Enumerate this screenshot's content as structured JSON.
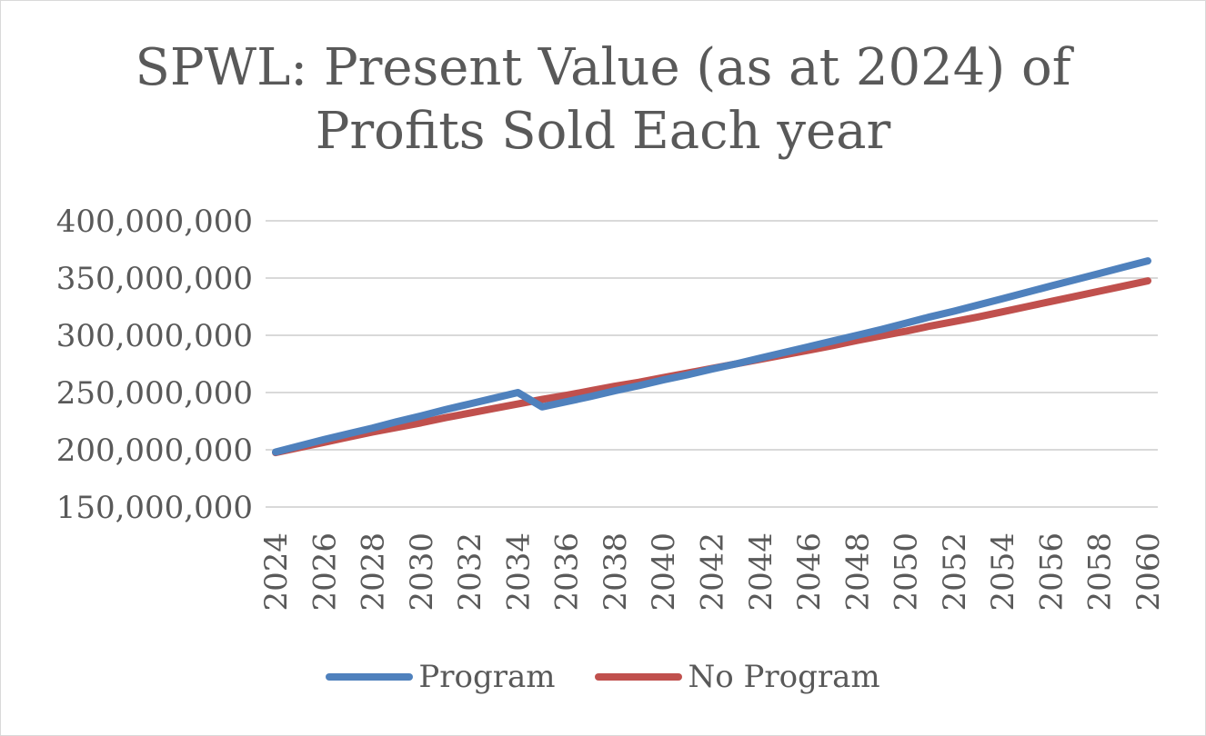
{
  "chart_data": {
    "type": "line",
    "title": "SPWL: Present Value (as at 2024) of Profits Sold Each year",
    "title_lines": [
      "SPWL: Present Value (as at 2024) of",
      "Profits Sold Each year"
    ],
    "xlabel": "",
    "ylabel": "",
    "ylim": [
      150000000,
      400000000
    ],
    "yticks": [
      150000000,
      200000000,
      250000000,
      300000000,
      350000000,
      400000000
    ],
    "ytick_labels": [
      "150,000,000",
      "200,000,000",
      "250,000,000",
      "300,000,000",
      "350,000,000",
      "400,000,000"
    ],
    "x": [
      2024,
      2025,
      2026,
      2027,
      2028,
      2029,
      2030,
      2031,
      2032,
      2033,
      2034,
      2035,
      2036,
      2037,
      2038,
      2039,
      2040,
      2041,
      2042,
      2043,
      2044,
      2045,
      2046,
      2047,
      2048,
      2049,
      2050,
      2051,
      2052,
      2053,
      2054,
      2055,
      2056,
      2057,
      2058,
      2059,
      2060
    ],
    "xtick_labels": [
      "2024",
      "2026",
      "2028",
      "2030",
      "2032",
      "2034",
      "2036",
      "2038",
      "2040",
      "2042",
      "2044",
      "2046",
      "2048",
      "2050",
      "2052",
      "2054",
      "2056",
      "2058",
      "2060"
    ],
    "grid": true,
    "legend_position": "bottom",
    "series": [
      {
        "name": "Program",
        "color": "#4f81bd",
        "values": [
          198000000,
          203500000,
          209000000,
          214000000,
          219000000,
          224500000,
          229500000,
          235000000,
          240000000,
          245000000,
          250000000,
          237500000,
          242000000,
          246500000,
          251500000,
          256000000,
          261000000,
          265500000,
          270500000,
          275000000,
          280000000,
          285000000,
          290000000,
          295000000,
          300000000,
          305000000,
          310500000,
          316000000,
          321000000,
          326500000,
          332000000,
          337500000,
          343000000,
          348500000,
          354000000,
          359500000,
          365000000
        ]
      },
      {
        "name": "No Program",
        "color": "#c0504d",
        "values": [
          197500000,
          202000000,
          206500000,
          211000000,
          215500000,
          219500000,
          223500000,
          228000000,
          232000000,
          236000000,
          240000000,
          244000000,
          247500000,
          251500000,
          255500000,
          259000000,
          263000000,
          267000000,
          271000000,
          275000000,
          279000000,
          283000000,
          287000000,
          291000000,
          295500000,
          299500000,
          303500000,
          308000000,
          312000000,
          316000000,
          320500000,
          325000000,
          329500000,
          334000000,
          338500000,
          343000000,
          347500000
        ]
      }
    ]
  }
}
